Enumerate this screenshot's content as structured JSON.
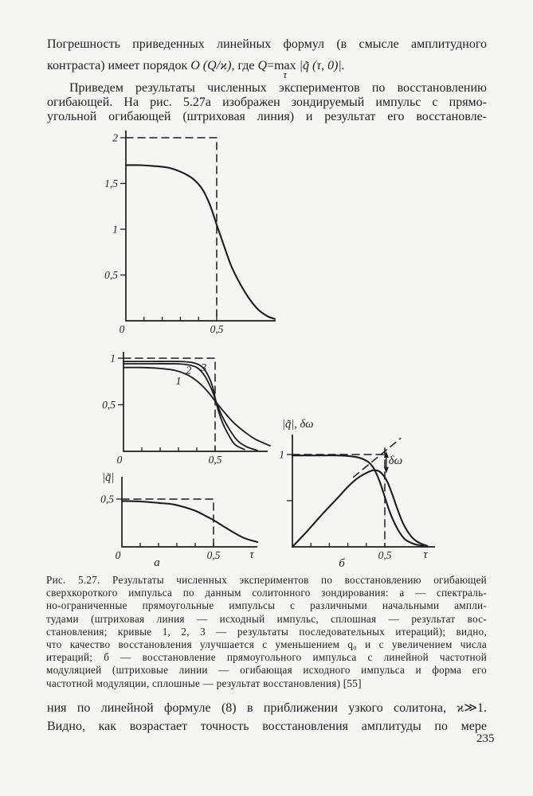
{
  "page": {
    "number": "235"
  },
  "colors": {
    "ink": "#1d1c1a",
    "paper": "#f6f5f1"
  },
  "paragraph1": {
    "line1": "Погрешность приведенных линейных формул (в смысле амплитудного",
    "f_pre": "контраста) имеет порядок ",
    "f_expr": "O (Q/ϰ),",
    "f_mid": " где ",
    "f_q": "Q",
    "f_eq": "=",
    "f_max": "max",
    "f_tau": "τ",
    "f_post": " |q̃ (τ, 0)|."
  },
  "paragraph2": {
    "line1": "Приведем результаты численных экспериментов по восстановлению",
    "line2": "огибающей. На рис. 5.27а изображен зондируемый импульс с прямо-",
    "line3": "угольной огибающей (штриховая линия) и результат его восстановле-"
  },
  "caption": {
    "lines": [
      "Рис. 5.27. Результаты численных экспериментов по восстановлению огибающей",
      "сверхкороткого импульса по данным солитонного зондирования: а — спектраль-",
      "но-ограниченные прямоугольные импульсы с различными начальными ампли-",
      "тудами (штриховая линия — исходный импульс, сплошная — результат вос-",
      "становления; кривые 1, 2, 3 — результаты последовательных итераций); видно,",
      "что качество восстановления улучшается с уменьшением q₀ и с увеличением числа",
      "итераций; б — восстановление прямоугольного импульса с линейной частотной",
      "модуляцией (штриховые линии — огибающая исходного импульса и форма его",
      "частотной модуляции, сплошные — результат восстановления) [55]"
    ]
  },
  "paragraph3": {
    "line1": "ния по линейной формуле (8) в приближении узкого солитона, ϰ≫1.",
    "line2": "Видно, как возрастает точность восстановления амплитуды по мере"
  },
  "chart_data": [
    {
      "id": "a_top",
      "type": "line",
      "xlim": [
        0,
        0.82
      ],
      "ylim": [
        0,
        2.07
      ],
      "x_ticks": [
        {
          "v": 0,
          "label": "0"
        },
        {
          "v": 0.1
        },
        {
          "v": 0.2
        },
        {
          "v": 0.3
        },
        {
          "v": 0.4
        },
        {
          "v": 0.5,
          "label": "0,5"
        }
      ],
      "y_ticks": [
        {
          "v": 0.5,
          "label": "0,5"
        },
        {
          "v": 1,
          "label": "1"
        },
        {
          "v": 1.5,
          "label": "1,5"
        },
        {
          "v": 2,
          "label": "2"
        }
      ],
      "series": [
        {
          "name": "initial-rect-pulse-dashed",
          "style": "dashed",
          "points": [
            [
              0,
              2
            ],
            [
              0.5,
              2
            ],
            [
              0.5,
              0
            ]
          ]
        },
        {
          "name": "recovered-envelope",
          "style": "solid",
          "points": [
            [
              0,
              1.7
            ],
            [
              0.08,
              1.7
            ],
            [
              0.16,
              1.69
            ],
            [
              0.24,
              1.67
            ],
            [
              0.31,
              1.62
            ],
            [
              0.37,
              1.55
            ],
            [
              0.42,
              1.44
            ],
            [
              0.46,
              1.28
            ],
            [
              0.5,
              1.05
            ],
            [
              0.54,
              0.82
            ],
            [
              0.58,
              0.6
            ],
            [
              0.63,
              0.4
            ],
            [
              0.68,
              0.24
            ],
            [
              0.73,
              0.12
            ],
            [
              0.78,
              0.05
            ],
            [
              0.82,
              0.02
            ]
          ]
        }
      ],
      "annotations": []
    },
    {
      "id": "a_mid",
      "type": "line",
      "xlim": [
        0,
        0.8
      ],
      "ylim": [
        0,
        1.08
      ],
      "x_ticks": [
        {
          "v": 0,
          "label": "0"
        },
        {
          "v": 0.1
        },
        {
          "v": 0.2
        },
        {
          "v": 0.3
        },
        {
          "v": 0.4
        },
        {
          "v": 0.5,
          "label": "0,5"
        }
      ],
      "y_ticks": [
        {
          "v": 0.5,
          "label": "0,5"
        },
        {
          "v": 1,
          "label": "1"
        }
      ],
      "series": [
        {
          "name": "initial-rect-pulse-dashed",
          "style": "dashed",
          "points": [
            [
              0,
              1
            ],
            [
              0.5,
              1
            ],
            [
              0.5,
              0
            ]
          ]
        },
        {
          "name": "iteration-1",
          "style": "solid",
          "w": 1.8,
          "points": [
            [
              0,
              0.9
            ],
            [
              0.1,
              0.9
            ],
            [
              0.2,
              0.89
            ],
            [
              0.28,
              0.87
            ],
            [
              0.35,
              0.82
            ],
            [
              0.41,
              0.74
            ],
            [
              0.46,
              0.64
            ],
            [
              0.5,
              0.54
            ],
            [
              0.55,
              0.42
            ],
            [
              0.6,
              0.31
            ],
            [
              0.66,
              0.21
            ],
            [
              0.72,
              0.13
            ],
            [
              0.8,
              0.06
            ]
          ]
        },
        {
          "name": "iteration-2",
          "style": "solid",
          "w": 1.8,
          "points": [
            [
              0,
              0.94
            ],
            [
              0.15,
              0.94
            ],
            [
              0.28,
              0.94
            ],
            [
              0.35,
              0.93
            ],
            [
              0.4,
              0.9
            ],
            [
              0.44,
              0.82
            ],
            [
              0.48,
              0.67
            ],
            [
              0.51,
              0.51
            ],
            [
              0.54,
              0.37
            ],
            [
              0.58,
              0.23
            ],
            [
              0.62,
              0.12
            ],
            [
              0.67,
              0.05
            ],
            [
              0.73,
              0.01
            ]
          ]
        },
        {
          "name": "iteration-3",
          "style": "solid",
          "w": 1.8,
          "points": [
            [
              0,
              0.965
            ],
            [
              0.15,
              0.965
            ],
            [
              0.3,
              0.965
            ],
            [
              0.37,
              0.955
            ],
            [
              0.42,
              0.92
            ],
            [
              0.455,
              0.84
            ],
            [
              0.485,
              0.7
            ],
            [
              0.51,
              0.49
            ],
            [
              0.54,
              0.31
            ],
            [
              0.575,
              0.17
            ],
            [
              0.61,
              0.07
            ],
            [
              0.66,
              0.02
            ]
          ]
        }
      ],
      "annotations": [
        {
          "type": "text",
          "text": "1",
          "x": 0.3,
          "y": 0.72,
          "size": 14,
          "name": "curve-1-label"
        },
        {
          "type": "text",
          "text": "2",
          "x": 0.356,
          "y": 0.835,
          "size": 14,
          "name": "curve-2-label"
        },
        {
          "type": "text",
          "text": "3",
          "x": 0.438,
          "y": 0.865,
          "size": 14,
          "name": "curve-3-label"
        }
      ]
    },
    {
      "id": "a_bot",
      "type": "line",
      "xlim": [
        0,
        0.74
      ],
      "ylim": [
        0,
        0.73
      ],
      "ylabel": "|q̃|",
      "xlabel": "τ",
      "sublabel": "а",
      "x_ticks": [
        {
          "v": 0,
          "label": "0"
        },
        {
          "v": 0.1
        },
        {
          "v": 0.2
        },
        {
          "v": 0.3
        },
        {
          "v": 0.4
        },
        {
          "v": 0.5,
          "label": "0,5"
        }
      ],
      "y_ticks": [
        {
          "v": 0.5,
          "label": "0,5"
        }
      ],
      "series": [
        {
          "name": "initial-rect-pulse-dashed",
          "style": "dashed",
          "points": [
            [
              0,
              0.5
            ],
            [
              0.5,
              0.5
            ],
            [
              0.5,
              0
            ]
          ]
        },
        {
          "name": "recovered-envelope",
          "style": "solid",
          "points": [
            [
              0,
              0.48
            ],
            [
              0.1,
              0.475
            ],
            [
              0.2,
              0.46
            ],
            [
              0.28,
              0.445
            ],
            [
              0.35,
              0.41
            ],
            [
              0.41,
              0.37
            ],
            [
              0.46,
              0.32
            ],
            [
              0.5,
              0.28
            ],
            [
              0.55,
              0.22
            ],
            [
              0.61,
              0.15
            ],
            [
              0.67,
              0.09
            ],
            [
              0.74,
              0.05
            ]
          ]
        }
      ],
      "annotations": []
    },
    {
      "id": "b",
      "type": "line",
      "xlim": [
        0,
        0.77
      ],
      "ylim": [
        0,
        1.22
      ],
      "ylabel": "|q̃|, δω",
      "xlabel": "τ",
      "sublabel": "б",
      "x_ticks": [
        {
          "v": 0.1
        },
        {
          "v": 0.2
        },
        {
          "v": 0.3
        },
        {
          "v": 0.4
        },
        {
          "v": 0.5,
          "label": "0,5"
        }
      ],
      "y_ticks": [
        {
          "v": 0.5
        },
        {
          "v": 1,
          "label": "1"
        }
      ],
      "series": [
        {
          "name": "initial-envelope-dashed-h",
          "style": "dashed",
          "points": [
            [
              0,
              1
            ],
            [
              0.5,
              1
            ]
          ]
        },
        {
          "name": "initial-envelope-dashed-v",
          "style": "dashed",
          "points": [
            [
              0.5,
              1.07
            ],
            [
              0.5,
              0
            ]
          ]
        },
        {
          "name": "linear-fm-dashed-diagonal",
          "style": "dashed",
          "points": [
            [
              0.33,
              0.755
            ],
            [
              0.585,
              1.175
            ]
          ]
        },
        {
          "name": "recovered-envelope",
          "style": "solid",
          "points": [
            [
              0,
              0.99
            ],
            [
              0.12,
              0.99
            ],
            [
              0.24,
              0.99
            ],
            [
              0.32,
              0.98
            ],
            [
              0.37,
              0.96
            ],
            [
              0.41,
              0.92
            ],
            [
              0.44,
              0.85
            ],
            [
              0.47,
              0.72
            ],
            [
              0.5,
              0.54
            ],
            [
              0.53,
              0.36
            ],
            [
              0.57,
              0.19
            ],
            [
              0.61,
              0.08
            ],
            [
              0.66,
              0.03
            ],
            [
              0.71,
              0.01
            ]
          ]
        },
        {
          "name": "recovered-frequency-modulation",
          "style": "solid",
          "points": [
            [
              0,
              0
            ],
            [
              0.08,
              0.17
            ],
            [
              0.16,
              0.35
            ],
            [
              0.24,
              0.52
            ],
            [
              0.3,
              0.65
            ],
            [
              0.35,
              0.74
            ],
            [
              0.4,
              0.8
            ],
            [
              0.44,
              0.83
            ],
            [
              0.475,
              0.81
            ],
            [
              0.51,
              0.72
            ],
            [
              0.54,
              0.57
            ],
            [
              0.57,
              0.4
            ],
            [
              0.6,
              0.25
            ],
            [
              0.64,
              0.12
            ],
            [
              0.68,
              0.05
            ],
            [
              0.73,
              0.01
            ]
          ]
        }
      ],
      "annotations": [
        {
          "type": "varrow",
          "x": 0.508,
          "y1": 1.035,
          "y2": 0.795,
          "name": "delta-omega-arrow"
        },
        {
          "type": "text",
          "text": "δω",
          "x": 0.558,
          "y": 0.895,
          "size": 15,
          "name": "delta-omega-label"
        }
      ]
    }
  ]
}
